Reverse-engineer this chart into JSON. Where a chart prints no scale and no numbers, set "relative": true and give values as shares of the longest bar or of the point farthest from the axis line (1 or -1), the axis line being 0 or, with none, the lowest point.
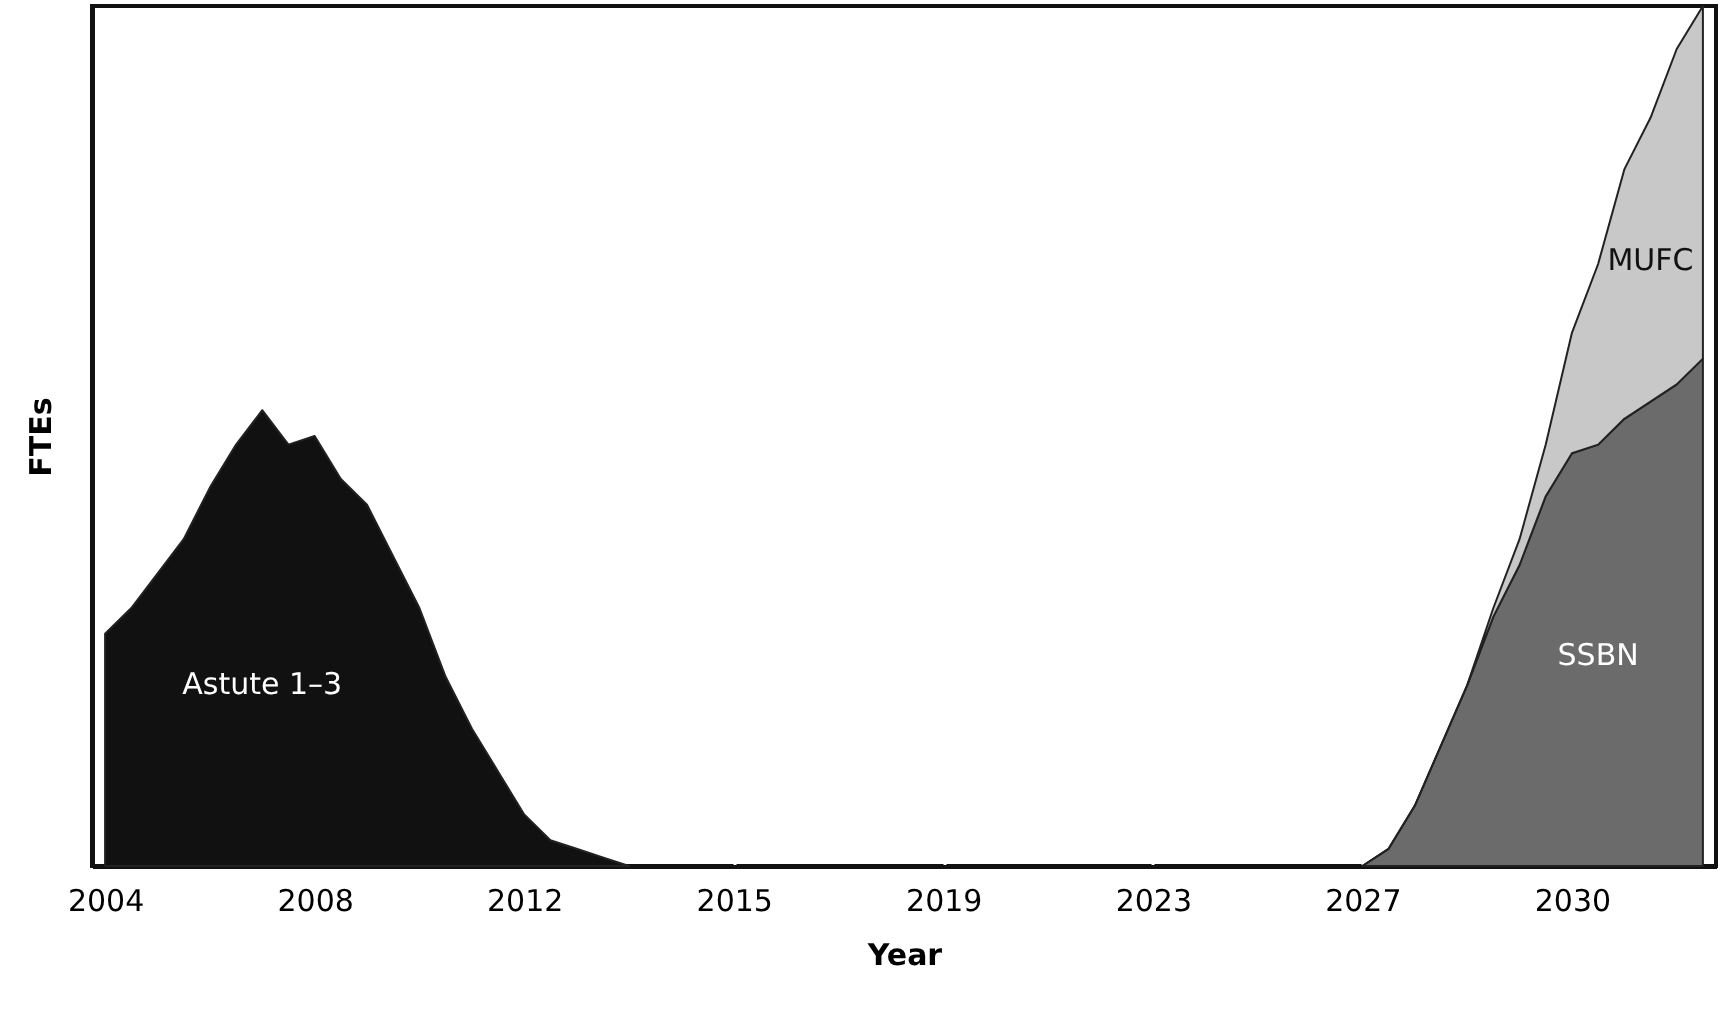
{
  "chart_data": {
    "type": "area",
    "xlabel": "Year",
    "ylabel": "FTEs",
    "relative": true,
    "stacked": true,
    "categories": [
      "2004",
      null,
      null,
      null,
      null,
      null,
      null,
      null,
      "2008",
      null,
      null,
      null,
      null,
      null,
      null,
      null,
      "2012",
      null,
      null,
      null,
      null,
      null,
      null,
      null,
      "2015",
      null,
      null,
      null,
      null,
      null,
      null,
      null,
      "2019",
      null,
      null,
      null,
      null,
      null,
      null,
      null,
      "2023",
      null,
      null,
      null,
      null,
      null,
      null,
      null,
      "2027",
      null,
      null,
      null,
      null,
      null,
      null,
      null,
      "2030",
      null,
      null,
      null,
      null,
      null
    ],
    "series": [
      {
        "name": "Astute 1–3",
        "color": "#111111",
        "values": [
          0.27,
          0.3,
          0.34,
          0.38,
          0.44,
          0.49,
          0.53,
          0.49,
          0.5,
          0.45,
          0.42,
          0.36,
          0.3,
          0.22,
          0.16,
          0.11,
          0.06,
          0.03,
          0.02,
          0.01,
          0,
          null,
          null,
          null,
          null,
          null,
          null,
          null,
          null,
          null,
          null,
          null,
          null,
          null,
          null,
          null,
          null,
          null,
          null,
          null,
          null,
          null,
          null,
          null,
          null,
          null,
          null,
          null,
          null,
          null,
          null,
          null,
          null,
          null,
          null,
          null,
          null,
          null,
          null,
          null,
          null,
          null
        ]
      },
      {
        "name": "SSBN",
        "color": "#6b6b6b",
        "values": [
          null,
          null,
          null,
          null,
          null,
          null,
          null,
          null,
          null,
          null,
          null,
          null,
          null,
          null,
          null,
          null,
          null,
          null,
          null,
          null,
          null,
          null,
          null,
          null,
          null,
          null,
          null,
          null,
          null,
          null,
          null,
          null,
          null,
          null,
          null,
          null,
          null,
          null,
          null,
          null,
          null,
          null,
          null,
          null,
          null,
          null,
          null,
          null,
          0,
          0.02,
          0.07,
          0.14,
          0.21,
          0.29,
          0.35,
          0.43,
          0.48,
          0.49,
          0.52,
          0.54,
          0.56,
          0.59
        ]
      },
      {
        "name": "MUFC",
        "color": "#c8c8c8",
        "values": [
          null,
          null,
          null,
          null,
          null,
          null,
          null,
          null,
          null,
          null,
          null,
          null,
          null,
          null,
          null,
          null,
          null,
          null,
          null,
          null,
          null,
          null,
          null,
          null,
          null,
          null,
          null,
          null,
          null,
          null,
          null,
          null,
          null,
          null,
          null,
          null,
          null,
          null,
          null,
          null,
          null,
          null,
          null,
          null,
          null,
          null,
          null,
          null,
          0,
          0,
          0,
          0,
          0,
          0.01,
          0.03,
          0.06,
          0.14,
          0.21,
          0.29,
          0.33,
          0.39,
          0.41
        ]
      }
    ]
  }
}
